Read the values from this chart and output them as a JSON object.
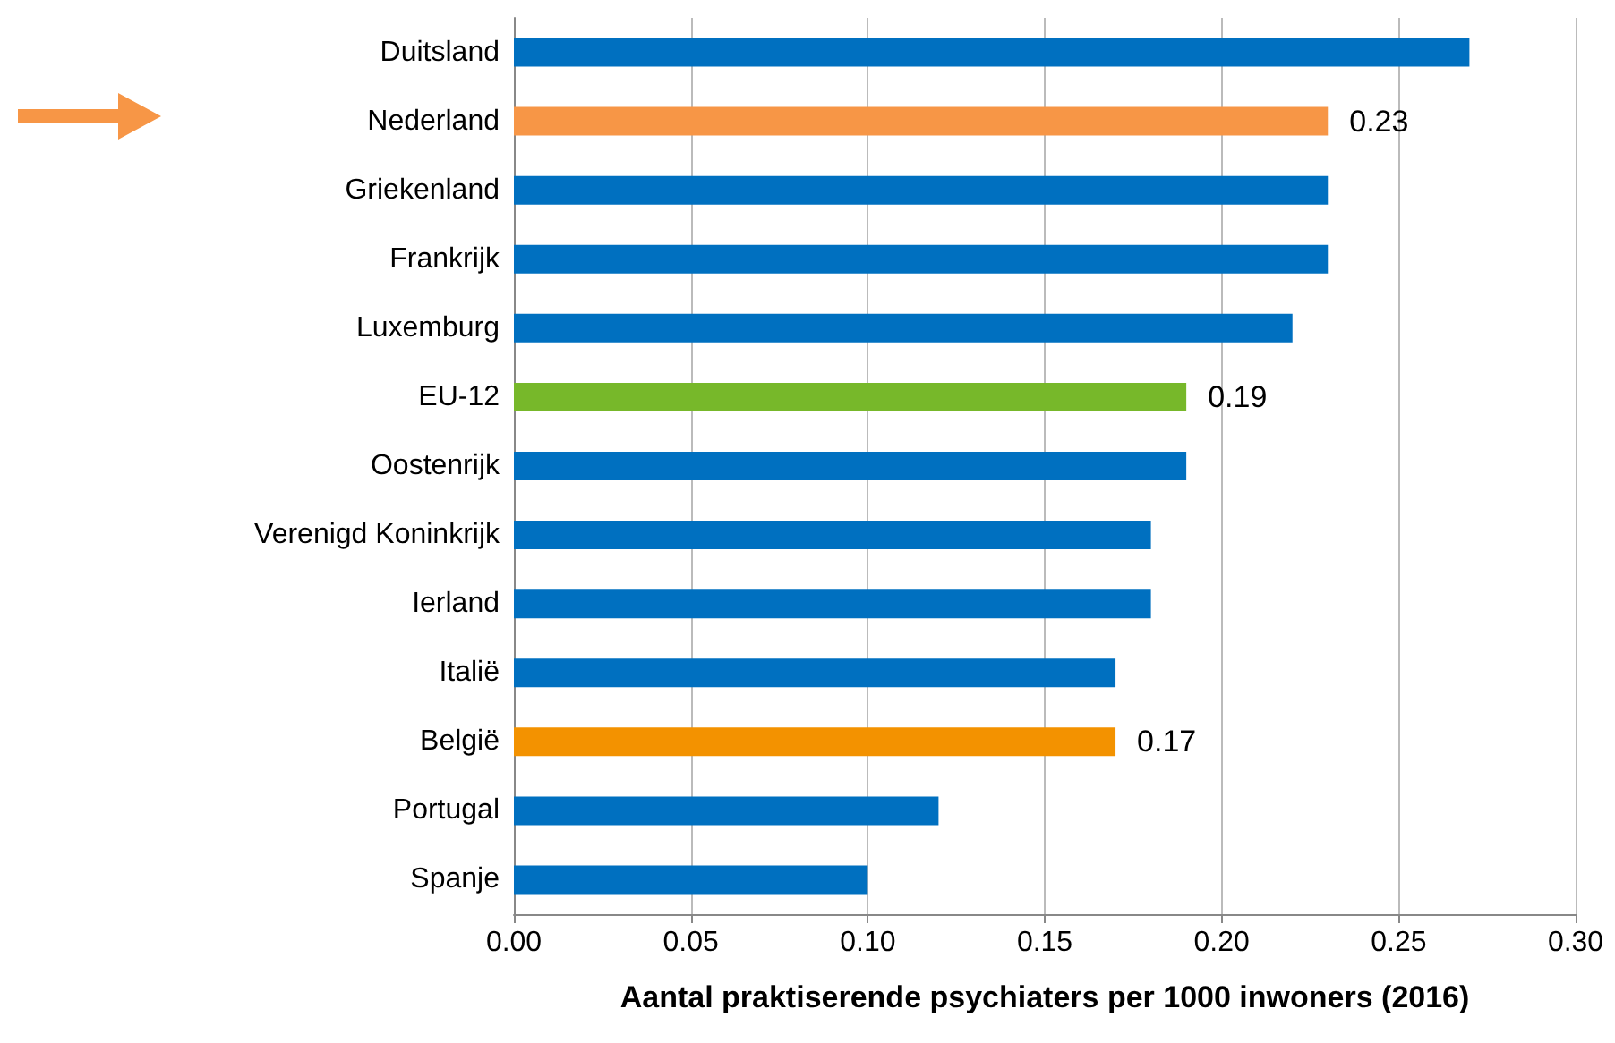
{
  "chart_data": {
    "type": "bar",
    "orientation": "horizontal",
    "xlabel": "Aantal praktiserende psychiaters per 1000 inwoners (2016)",
    "categories": [
      "Duitsland",
      "Nederland",
      "Griekenland",
      "Frankrijk",
      "Luxemburg",
      "EU-12",
      "Oostenrijk",
      "Verenigd Koninkrijk",
      "Ierland",
      "Italië",
      "België",
      "Portugal",
      "Spanje"
    ],
    "values": [
      0.27,
      0.23,
      0.23,
      0.23,
      0.22,
      0.19,
      0.19,
      0.18,
      0.18,
      0.17,
      0.17,
      0.12,
      0.1
    ],
    "colors": [
      "#0070c0",
      "#f79646",
      "#0070c0",
      "#0070c0",
      "#0070c0",
      "#77b82a",
      "#0070c0",
      "#0070c0",
      "#0070c0",
      "#0070c0",
      "#f39200",
      "#0070c0",
      "#0070c0"
    ],
    "value_labels": [
      null,
      "0.23",
      null,
      null,
      null,
      "0.19",
      null,
      null,
      null,
      null,
      "0.17",
      null,
      null
    ],
    "xlim": [
      0,
      0.3
    ],
    "xticks": [
      {
        "value": 0,
        "label": "0.00"
      },
      {
        "value": 0.05,
        "label": "0.05"
      },
      {
        "value": 0.1,
        "label": "0.10"
      },
      {
        "value": 0.15,
        "label": "0.15"
      },
      {
        "value": 0.2,
        "label": "0.20"
      },
      {
        "value": 0.25,
        "label": "0.25"
      },
      {
        "value": 0.3,
        "label": "0.30"
      }
    ],
    "grid": "x"
  }
}
